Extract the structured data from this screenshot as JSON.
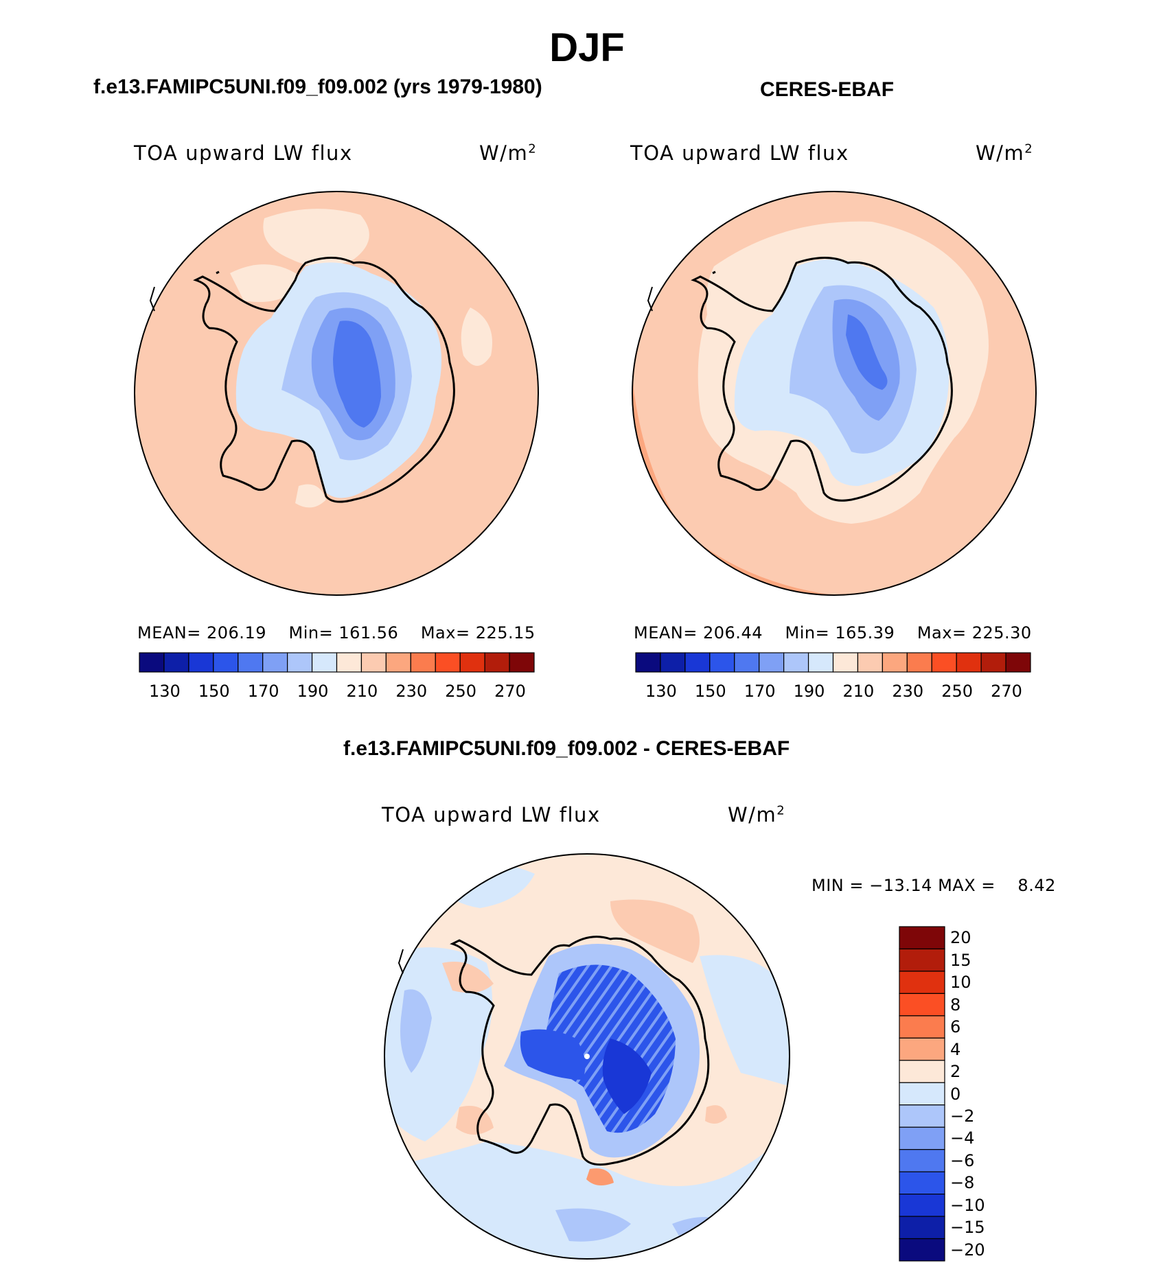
{
  "season": "DJF",
  "panels": [
    {
      "id": "model",
      "title": "f.e13.FAMIPC5UNI.f09_f09.002 (yrs 1979-1980)",
      "variable": "TOA upward LW flux",
      "units_base": "W/m",
      "units_sup": "2",
      "mean_label": "MEAN=",
      "mean": "206.19",
      "min_label": "Min=",
      "min": "161.56",
      "max_label": "Max=",
      "max": "225.15"
    },
    {
      "id": "obs",
      "title": "CERES-EBAF",
      "variable": "TOA upward LW flux",
      "units_base": "W/m",
      "units_sup": "2",
      "mean_label": "MEAN=",
      "mean": "206.44",
      "min_label": "Min=",
      "min": "165.39",
      "max_label": "Max=",
      "max": "225.30"
    }
  ],
  "abs_colorbar": {
    "colors": [
      "#0a0a7e",
      "#0d1fa8",
      "#1937d6",
      "#2c55ea",
      "#4f78f0",
      "#7fa0f5",
      "#adc6fa",
      "#d6e8fc",
      "#fde8d8",
      "#fccbb1",
      "#fca77f",
      "#fb7c4e",
      "#fb4f24",
      "#e0310f",
      "#b21d0b",
      "#7e0608"
    ],
    "labels": [
      "130",
      "150",
      "170",
      "190",
      "210",
      "230",
      "250",
      "270"
    ]
  },
  "difference": {
    "title": "f.e13.FAMIPC5UNI.f09_f09.002 - CERES-EBAF",
    "variable": "TOA upward LW flux",
    "units_base": "W/m",
    "units_sup": "2",
    "min_label": "MIN =",
    "min": "−13.14",
    "max_label": "MAX =",
    "max": "8.42",
    "colorbar": {
      "colors": [
        "#7e0608",
        "#b21d0b",
        "#e0310f",
        "#fb4f24",
        "#fb7c4e",
        "#fca77f",
        "#fde8d8",
        "#d6e8fc",
        "#adc6fa",
        "#7fa0f5",
        "#4f78f0",
        "#2c55ea",
        "#1937d6",
        "#0d1fa8",
        "#0a0a7e"
      ],
      "labels": [
        "20",
        "15",
        "10",
        "8",
        "6",
        "4",
        "2",
        "0",
        "−2",
        "−4",
        "−6",
        "−8",
        "−10",
        "−15",
        "−20"
      ]
    }
  }
}
